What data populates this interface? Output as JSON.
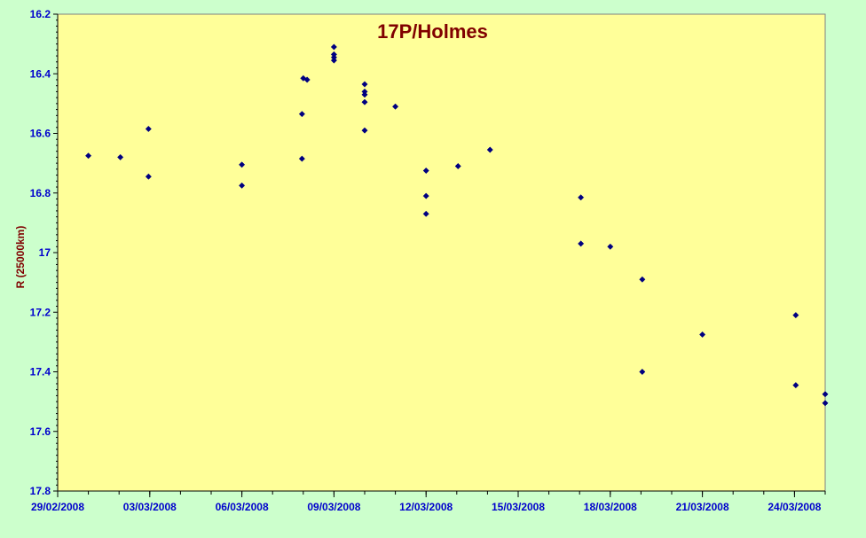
{
  "chart_data": {
    "type": "scatter",
    "title": "17P/Holmes",
    "xlabel": "",
    "ylabel": "R (25000km)",
    "ylim": [
      16.2,
      17.8
    ],
    "y_inverted": true,
    "yticks": [
      "16.2",
      "16.4",
      "16.6",
      "16.8",
      "17",
      "17.2",
      "17.4",
      "17.6",
      "17.8"
    ],
    "xlim": [
      "2008-02-29",
      "2008-03-25"
    ],
    "xticks": [
      "29/02/2008",
      "03/03/2008",
      "06/03/2008",
      "09/03/2008",
      "12/03/2008",
      "15/03/2008",
      "18/03/2008",
      "21/03/2008",
      "24/03/2008"
    ],
    "grid": false,
    "legend": "none",
    "colors": {
      "plot_bg": "#ffff99",
      "page_bg": "#ccffcc",
      "marker": "#000080",
      "title": "#800000",
      "tick": "#0000cc"
    },
    "series": [
      {
        "points": [
          {
            "x": "2008-03-01 00:00",
            "y": 16.675
          },
          {
            "x": "2008-03-02 01:00",
            "y": 16.68
          },
          {
            "x": "2008-03-02 23:00",
            "y": 16.585
          },
          {
            "x": "2008-03-02 23:00",
            "y": 16.745
          },
          {
            "x": "2008-03-06 00:00",
            "y": 16.705
          },
          {
            "x": "2008-03-06 00:00",
            "y": 16.775
          },
          {
            "x": "2008-03-07 23:00",
            "y": 16.535
          },
          {
            "x": "2008-03-07 23:00",
            "y": 16.685
          },
          {
            "x": "2008-03-08 00:00",
            "y": 16.415
          },
          {
            "x": "2008-03-08 03:00",
            "y": 16.42
          },
          {
            "x": "2008-03-09 00:00",
            "y": 16.31
          },
          {
            "x": "2008-03-09 00:00",
            "y": 16.335
          },
          {
            "x": "2008-03-09 00:00",
            "y": 16.345
          },
          {
            "x": "2008-03-09 00:00",
            "y": 16.355
          },
          {
            "x": "2008-03-10 00:00",
            "y": 16.435
          },
          {
            "x": "2008-03-10 00:00",
            "y": 16.46
          },
          {
            "x": "2008-03-10 00:00",
            "y": 16.47
          },
          {
            "x": "2008-03-10 00:00",
            "y": 16.495
          },
          {
            "x": "2008-03-10 00:00",
            "y": 16.59
          },
          {
            "x": "2008-03-11 00:00",
            "y": 16.51
          },
          {
            "x": "2008-03-12 00:00",
            "y": 16.725
          },
          {
            "x": "2008-03-12 00:00",
            "y": 16.81
          },
          {
            "x": "2008-03-12 00:00",
            "y": 16.87
          },
          {
            "x": "2008-03-13 01:00",
            "y": 16.71
          },
          {
            "x": "2008-03-14 02:00",
            "y": 16.655
          },
          {
            "x": "2008-03-17 01:00",
            "y": 16.815
          },
          {
            "x": "2008-03-17 01:00",
            "y": 16.97
          },
          {
            "x": "2008-03-18 00:00",
            "y": 16.98
          },
          {
            "x": "2008-03-19 01:00",
            "y": 17.09
          },
          {
            "x": "2008-03-19 01:00",
            "y": 17.4
          },
          {
            "x": "2008-03-21 00:00",
            "y": 17.275
          },
          {
            "x": "2008-03-24 01:00",
            "y": 17.21
          },
          {
            "x": "2008-03-24 01:00",
            "y": 17.445
          },
          {
            "x": "2008-03-25 00:00",
            "y": 17.475
          },
          {
            "x": "2008-03-25 00:00",
            "y": 17.505
          }
        ]
      }
    ]
  }
}
